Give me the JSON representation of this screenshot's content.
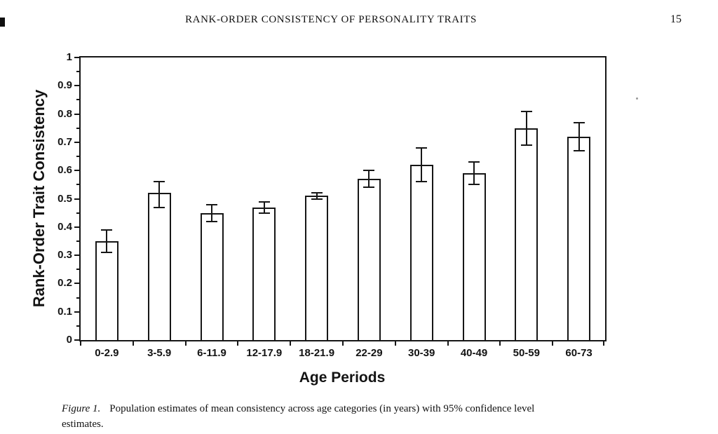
{
  "page": {
    "header_title": "RANK-ORDER CONSISTENCY OF PERSONALITY TRAITS",
    "page_number": "15"
  },
  "caption": {
    "label": "Figure 1.",
    "line1": "Population estimates of mean consistency across age categories (in years) with 95% confidence level",
    "line2": "estimates."
  },
  "chart_data": {
    "type": "bar",
    "title": "",
    "xlabel": "Age Periods",
    "ylabel": "Rank-Order Trait Consistency",
    "categories": [
      "0-2.9",
      "3-5.9",
      "6-11.9",
      "12-17.9",
      "18-21.9",
      "22-29",
      "30-39",
      "40-49",
      "50-59",
      "60-73"
    ],
    "values": [
      0.35,
      0.52,
      0.45,
      0.47,
      0.51,
      0.57,
      0.62,
      0.59,
      0.75,
      0.72
    ],
    "error_low": [
      0.31,
      0.47,
      0.42,
      0.45,
      0.5,
      0.54,
      0.56,
      0.55,
      0.69,
      0.67
    ],
    "error_high": [
      0.39,
      0.56,
      0.48,
      0.49,
      0.52,
      0.6,
      0.68,
      0.63,
      0.81,
      0.77
    ],
    "error_note": "95% confidence intervals",
    "ylim": [
      0,
      1
    ],
    "yticks": [
      {
        "value": 0,
        "label": "0"
      },
      {
        "value": 0.1,
        "label": "0.1"
      },
      {
        "value": 0.2,
        "label": "0.2"
      },
      {
        "value": 0.3,
        "label": "0.3"
      },
      {
        "value": 0.4,
        "label": "0.4"
      },
      {
        "value": 0.5,
        "label": "0.5"
      },
      {
        "value": 0.6,
        "label": "0.6"
      },
      {
        "value": 0.7,
        "label": "0.7"
      },
      {
        "value": 0.8,
        "label": "0.8"
      },
      {
        "value": 0.9,
        "label": "0.9"
      },
      {
        "value": 1,
        "label": "1"
      }
    ],
    "minor_tick_step": 0.05,
    "grid": false,
    "legend": null,
    "bar_fill": "#ffffff",
    "ink_color": "#161616"
  }
}
